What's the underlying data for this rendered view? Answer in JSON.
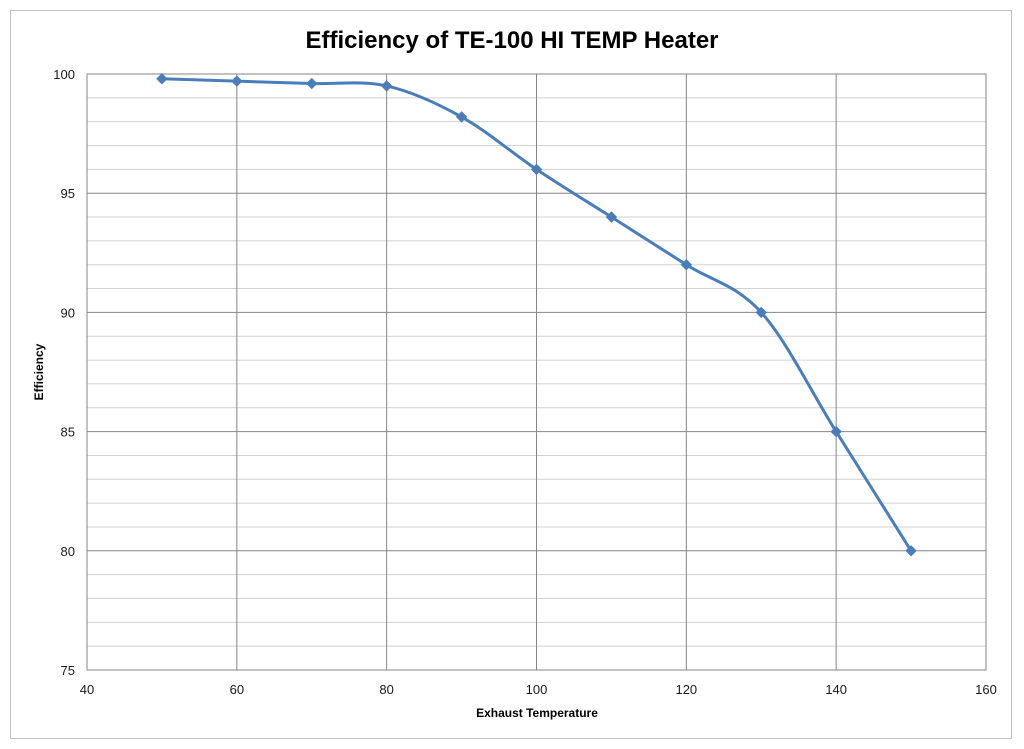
{
  "chart_data": {
    "type": "line",
    "title": "Efficiency of TE-100 HI TEMP Heater",
    "xlabel": "Exhaust Temperature",
    "ylabel": "Efficiency",
    "xlim": [
      40,
      160
    ],
    "ylim": [
      75,
      100
    ],
    "x_ticks": [
      40,
      60,
      80,
      100,
      120,
      140,
      160
    ],
    "y_ticks": [
      75,
      80,
      85,
      90,
      95,
      100
    ],
    "grid": true,
    "smooth": true,
    "series_color": "#4a7ebb",
    "series": [
      {
        "x": [
          50,
          60,
          70,
          80,
          90,
          100,
          110,
          120,
          130,
          140,
          150
        ],
        "values": [
          99.8,
          99.7,
          99.6,
          99.5,
          98.2,
          96,
          94,
          92,
          90,
          85,
          80
        ]
      }
    ]
  }
}
